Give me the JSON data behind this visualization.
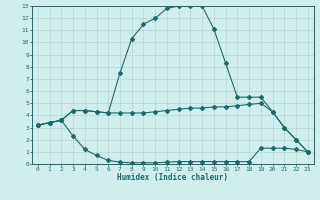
{
  "xlabel": "Humidex (Indice chaleur)",
  "xlim": [
    -0.5,
    23.5
  ],
  "ylim": [
    0,
    13
  ],
  "xticks": [
    0,
    1,
    2,
    3,
    4,
    5,
    6,
    7,
    8,
    9,
    10,
    11,
    12,
    13,
    14,
    15,
    16,
    17,
    18,
    19,
    20,
    21,
    22,
    23
  ],
  "yticks": [
    0,
    1,
    2,
    3,
    4,
    5,
    6,
    7,
    8,
    9,
    10,
    11,
    12,
    13
  ],
  "bg_color": "#d1eded",
  "grid_color": "#b8d8d8",
  "line_color": "#1a6b6b",
  "curve1_x": [
    0,
    1,
    2,
    3,
    4,
    5,
    6,
    7,
    8,
    9,
    10,
    11,
    12,
    13,
    14,
    15,
    16,
    17,
    18,
    19,
    20,
    21,
    22,
    23
  ],
  "curve1_y": [
    3.2,
    3.4,
    3.6,
    4.4,
    4.4,
    4.3,
    4.2,
    7.5,
    10.3,
    11.5,
    12.0,
    12.8,
    13.0,
    13.0,
    13.0,
    11.1,
    8.3,
    5.5,
    5.5,
    5.5,
    4.3,
    3.0,
    2.0,
    1.0
  ],
  "curve2_x": [
    0,
    1,
    2,
    3,
    4,
    5,
    6,
    7,
    8,
    9,
    10,
    11,
    12,
    13,
    14,
    15,
    16,
    17,
    18,
    19,
    20,
    21,
    22,
    23
  ],
  "curve2_y": [
    3.2,
    3.4,
    3.6,
    4.4,
    4.4,
    4.3,
    4.2,
    4.2,
    4.2,
    4.2,
    4.3,
    4.4,
    4.5,
    4.6,
    4.6,
    4.7,
    4.7,
    4.8,
    4.9,
    5.0,
    4.3,
    3.0,
    2.0,
    1.0
  ],
  "curve3_x": [
    0,
    1,
    2,
    3,
    4,
    5,
    6,
    7,
    8,
    9,
    10,
    11,
    12,
    13,
    14,
    15,
    16,
    17,
    18,
    19,
    20,
    21,
    22,
    23
  ],
  "curve3_y": [
    3.2,
    3.4,
    3.6,
    2.3,
    1.2,
    0.7,
    0.3,
    0.15,
    0.1,
    0.1,
    0.1,
    0.15,
    0.2,
    0.2,
    0.2,
    0.2,
    0.2,
    0.2,
    0.2,
    1.3,
    1.3,
    1.3,
    1.2,
    1.0
  ]
}
